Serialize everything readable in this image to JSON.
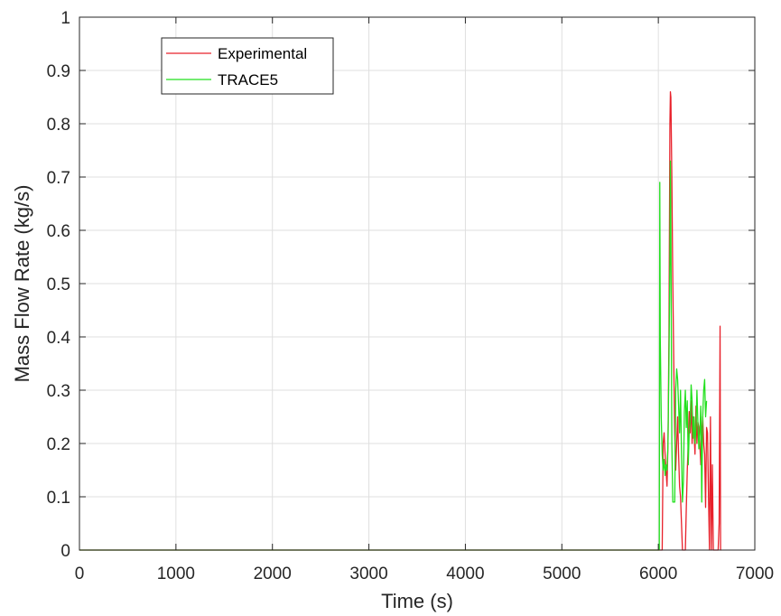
{
  "chart_data": {
    "type": "line",
    "title": "",
    "xlabel": "Time (s)",
    "ylabel": "Mass Flow Rate (kg/s)",
    "xlim": [
      0,
      7000
    ],
    "ylim": [
      0,
      1
    ],
    "xticks": [
      0,
      1000,
      2000,
      3000,
      4000,
      5000,
      6000,
      7000
    ],
    "xtick_labels": [
      "0",
      "1000",
      "2000",
      "3000",
      "4000",
      "5000",
      "6000",
      "7000"
    ],
    "yticks": [
      0,
      0.1,
      0.2,
      0.3,
      0.4,
      0.5,
      0.6,
      0.7,
      0.8,
      0.9,
      1
    ],
    "ytick_labels": [
      "0",
      "0.1",
      "0.2",
      "0.3",
      "0.4",
      "0.5",
      "0.6",
      "0.7",
      "0.8",
      "0.9",
      "1"
    ],
    "grid": true,
    "legend_position": "top-left",
    "series": [
      {
        "name": "Experimental",
        "color": "#e8212b",
        "x": [
          0,
          6040,
          6050,
          6060,
          6070,
          6080,
          6090,
          6100,
          6110,
          6115,
          6120,
          6125,
          6130,
          6140,
          6150,
          6160,
          6170,
          6180,
          6190,
          6200,
          6210,
          6220,
          6230,
          6240,
          6250,
          6260,
          6270,
          6280,
          6290,
          6300,
          6310,
          6320,
          6330,
          6340,
          6350,
          6360,
          6370,
          6380,
          6390,
          6400,
          6410,
          6420,
          6430,
          6440,
          6450,
          6460,
          6470,
          6480,
          6490,
          6500,
          6510,
          6520,
          6530,
          6540,
          6550,
          6560,
          6570,
          6580,
          6590,
          6600,
          6610,
          6620,
          6630,
          6640,
          6645,
          6650
        ],
        "y": [
          0,
          0,
          0.2,
          0.22,
          0.18,
          0.15,
          0.12,
          0.2,
          0.4,
          0.6,
          0.8,
          0.86,
          0.85,
          0.7,
          0.5,
          0.35,
          0.22,
          0.15,
          0.2,
          0.25,
          0.18,
          0.12,
          0.1,
          0.05,
          0,
          0,
          0,
          0,
          0.08,
          0.15,
          0.2,
          0.26,
          0.22,
          0.28,
          0.2,
          0.25,
          0.22,
          0.18,
          0.27,
          0.2,
          0.24,
          0.23,
          0.2,
          0.16,
          0.22,
          0.25,
          0.2,
          0.18,
          0.08,
          0.23,
          0.22,
          0.1,
          0,
          0.25,
          0,
          0.16,
          0,
          0,
          0,
          0,
          0,
          0,
          0.05,
          0.42,
          0,
          0
        ]
      },
      {
        "name": "TRACE5",
        "color": "#22e01e",
        "x": [
          0,
          6000,
          6010,
          6015,
          6020,
          6030,
          6040,
          6050,
          6060,
          6070,
          6080,
          6090,
          6100,
          6110,
          6120,
          6125,
          6130,
          6135,
          6140,
          6150,
          6160,
          6170,
          6180,
          6190,
          6200,
          6210,
          6220,
          6230,
          6240,
          6250,
          6260,
          6270,
          6280,
          6290,
          6300,
          6310,
          6320,
          6330,
          6340,
          6350,
          6360,
          6370,
          6380,
          6390,
          6400,
          6410,
          6420,
          6430,
          6440,
          6450,
          6460,
          6470,
          6480,
          6490,
          6500
        ],
        "y": [
          0,
          0,
          0,
          0.69,
          0.4,
          0.25,
          0.18,
          0.15,
          0.17,
          0.14,
          0.16,
          0.15,
          0.2,
          0.35,
          0.55,
          0.73,
          0.6,
          0.4,
          0.2,
          0.09,
          0.09,
          0.09,
          0.3,
          0.34,
          0.32,
          0.27,
          0.22,
          0.3,
          0.18,
          0.09,
          0.13,
          0.26,
          0.3,
          0.23,
          0.28,
          0.16,
          0.22,
          0.24,
          0.31,
          0.28,
          0.21,
          0.25,
          0.2,
          0.23,
          0.3,
          0.24,
          0.19,
          0.22,
          0.27,
          0.09,
          0.25,
          0.3,
          0.32,
          0.25,
          0.28
        ]
      }
    ]
  }
}
